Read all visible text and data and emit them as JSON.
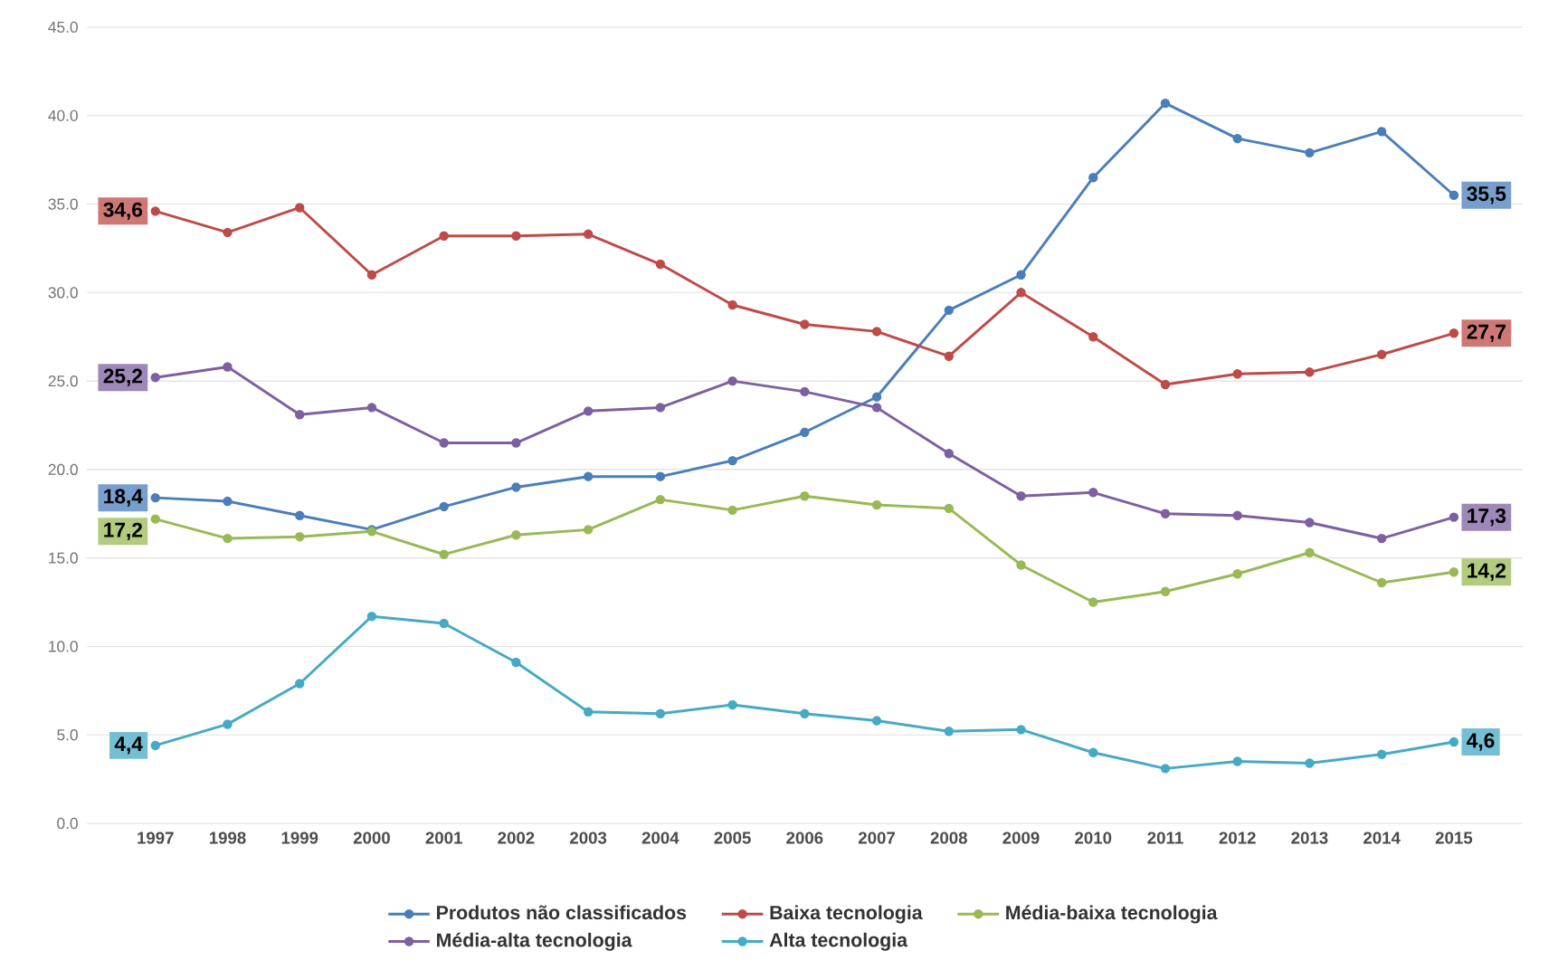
{
  "chart_data": {
    "type": "line",
    "categories": [
      "1997",
      "1998",
      "1999",
      "2000",
      "2001",
      "2002",
      "2003",
      "2004",
      "2005",
      "2006",
      "2007",
      "2008",
      "2009",
      "2010",
      "2011",
      "2012",
      "2013",
      "2014",
      "2015"
    ],
    "series": [
      {
        "name": "Produtos não classificados",
        "color": "#4a7ebb",
        "values": [
          18.4,
          18.2,
          17.4,
          16.6,
          17.9,
          19.0,
          19.6,
          19.6,
          20.5,
          22.1,
          24.1,
          29.0,
          31.0,
          36.5,
          40.7,
          38.7,
          37.9,
          39.1,
          35.5
        ],
        "value_labels": [
          "18,4",
          null,
          null,
          null,
          null,
          null,
          null,
          null,
          null,
          null,
          null,
          null,
          null,
          null,
          null,
          null,
          null,
          null,
          "35,5"
        ]
      },
      {
        "name": "Baixa tecnologia",
        "color": "#be4b48",
        "values": [
          34.6,
          33.4,
          34.8,
          31.0,
          33.2,
          33.2,
          33.3,
          31.6,
          29.3,
          28.2,
          27.8,
          26.4,
          30.0,
          27.5,
          24.8,
          25.4,
          25.5,
          26.5,
          27.7
        ],
        "value_labels": [
          "34,6",
          null,
          null,
          null,
          null,
          null,
          null,
          null,
          null,
          null,
          null,
          null,
          null,
          null,
          null,
          null,
          null,
          null,
          "27,7"
        ]
      },
      {
        "name": "Média-baixa tecnologia",
        "color": "#98b954",
        "values": [
          17.2,
          16.1,
          16.2,
          16.5,
          15.2,
          16.3,
          16.6,
          18.3,
          17.7,
          18.5,
          18.0,
          17.8,
          14.6,
          12.5,
          13.1,
          14.1,
          15.3,
          13.6,
          14.2
        ],
        "value_labels": [
          "17,2",
          null,
          null,
          null,
          null,
          null,
          null,
          null,
          null,
          null,
          null,
          null,
          null,
          null,
          null,
          null,
          null,
          null,
          "14,2"
        ]
      },
      {
        "name": "Média-alta tecnologia",
        "color": "#7d60a0",
        "values": [
          25.2,
          25.8,
          23.1,
          23.5,
          21.5,
          21.5,
          23.3,
          23.5,
          25.0,
          24.4,
          23.5,
          20.9,
          18.5,
          18.7,
          17.5,
          17.4,
          17.0,
          16.1,
          17.3
        ],
        "value_labels": [
          "25,2",
          null,
          null,
          null,
          null,
          null,
          null,
          null,
          null,
          null,
          null,
          null,
          null,
          null,
          null,
          null,
          null,
          null,
          "17,3"
        ]
      },
      {
        "name": "Alta tecnologia",
        "color": "#46aac5",
        "values": [
          4.4,
          5.6,
          7.9,
          11.7,
          11.3,
          9.1,
          6.3,
          6.2,
          6.7,
          6.2,
          5.8,
          5.2,
          5.3,
          4.0,
          3.1,
          3.5,
          3.4,
          3.9,
          4.6
        ],
        "value_labels": [
          "4,4",
          null,
          null,
          null,
          null,
          null,
          null,
          null,
          null,
          null,
          null,
          null,
          null,
          null,
          null,
          null,
          null,
          null,
          "4,6"
        ]
      }
    ],
    "ylim": [
      0,
      45
    ],
    "yticks": [
      {
        "value": 0,
        "label": "0.0"
      },
      {
        "value": 5,
        "label": "5.0"
      },
      {
        "value": 10,
        "label": "10.0"
      },
      {
        "value": 15,
        "label": "15.0"
      },
      {
        "value": 20,
        "label": "20.0"
      },
      {
        "value": 25,
        "label": "25.0"
      },
      {
        "value": 30,
        "label": "30.0"
      },
      {
        "value": 35,
        "label": "35.0"
      },
      {
        "value": 40,
        "label": "40.0"
      },
      {
        "value": 45,
        "label": "45.0"
      }
    ],
    "grid": "y",
    "legend": "bottom",
    "marker": "circle",
    "line_style": "solid"
  }
}
